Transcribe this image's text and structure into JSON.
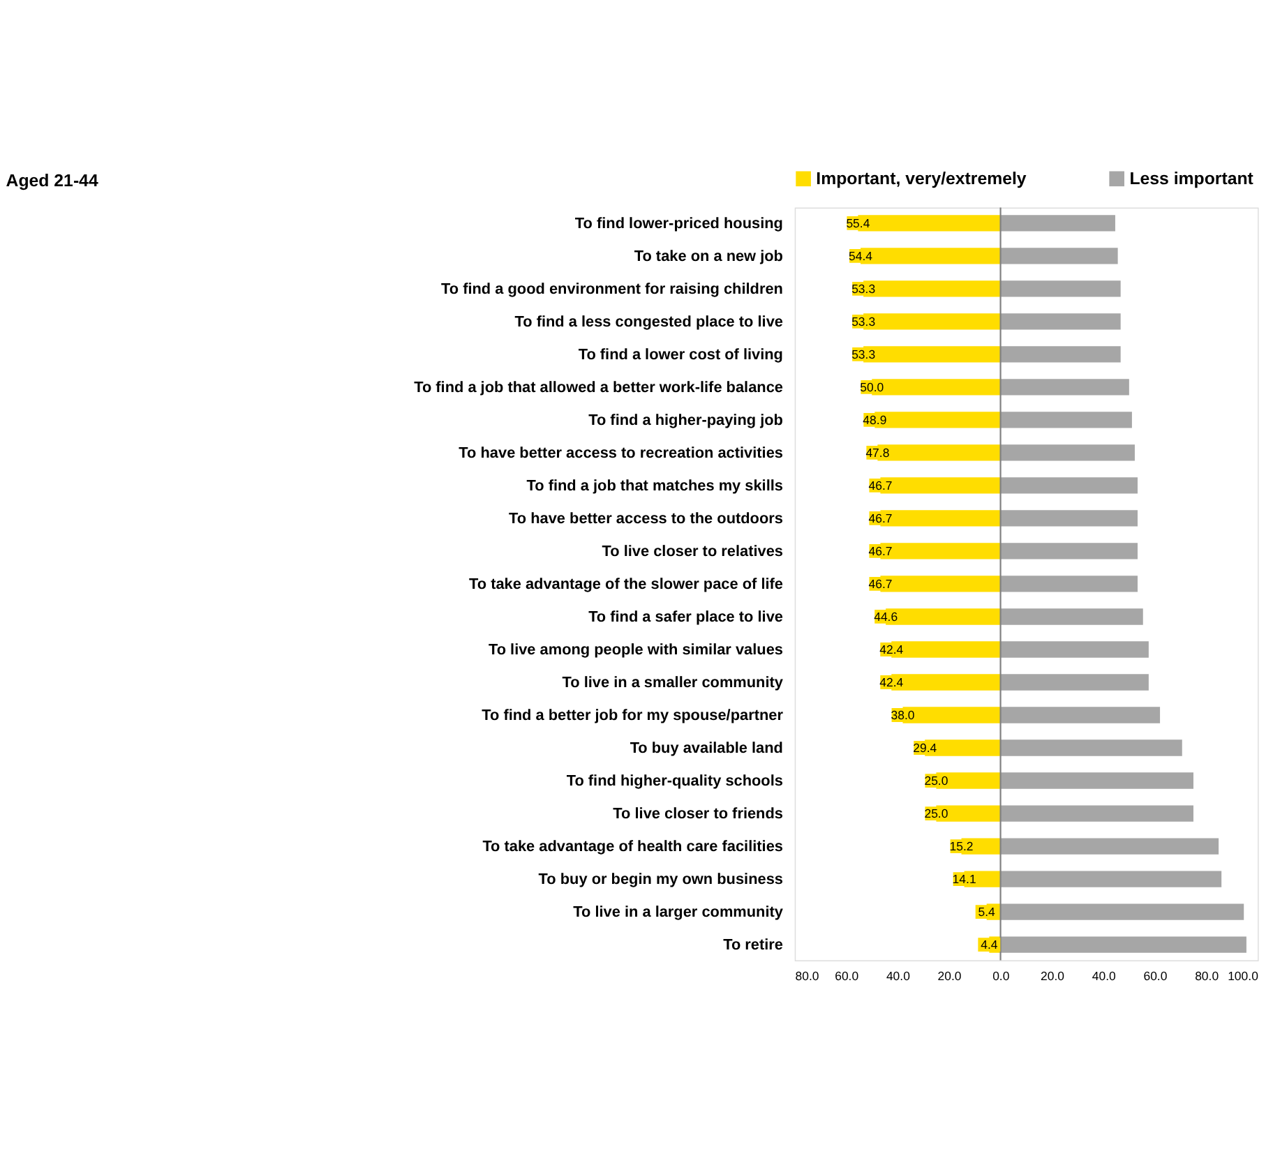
{
  "chart_data": {
    "type": "bar",
    "orientation": "horizontal",
    "title": "Aged 21-44",
    "categories": [
      "To find lower-priced housing",
      "To take  on a new job",
      "To find a good environment for raising children",
      "To find a less congested place to live",
      "To find a lower cost of living",
      "To find a job that allowed a better work-life balance",
      "To find a higher-paying job",
      "To have better access to recreation activities",
      "To find a job that matches my skills",
      "To have better access to the outdoors",
      "To live closer to relatives",
      "To take advantage of the slower pace of life",
      "To find a safer place to live",
      "To live among people with similar values",
      "To live in a smaller community",
      "To find a better job for my spouse/partner",
      "To buy available land",
      "To find higher-quality schools",
      "To live closer to friends",
      "To take advantage of health care facilities",
      "To buy or begin my own business",
      "To live in a larger community",
      "To retire"
    ],
    "series": [
      {
        "name": "Important, very/extremely",
        "color": "#ffdd00",
        "base": [
          -55.4,
          -54.4,
          -53.3,
          -53.3,
          -53.3,
          -50.0,
          -48.9,
          -47.8,
          -46.7,
          -46.7,
          -46.7,
          -46.7,
          -44.6,
          -42.4,
          -42.4,
          -38.0,
          -29.4,
          -25.0,
          -25.0,
          -15.2,
          -14.1,
          -5.4,
          -4.4
        ],
        "values": [
          55.4,
          54.4,
          53.3,
          53.3,
          53.3,
          50.0,
          48.9,
          47.8,
          46.7,
          46.7,
          46.7,
          46.7,
          44.6,
          42.4,
          42.4,
          38.0,
          29.4,
          25.0,
          25.0,
          15.2,
          14.1,
          5.4,
          4.4
        ],
        "value_labels": [
          "55.4",
          "54.4",
          "53.3",
          "53.3",
          "53.3",
          "50.0",
          "48.9",
          "47.8",
          "46.7",
          "46.7",
          "46.7",
          "46.7",
          "44.6",
          "42.4",
          "42.4",
          "38.0",
          "29.4",
          "25.0",
          "25.0",
          "15.2",
          "14.1",
          "5.4",
          "4.4"
        ]
      },
      {
        "name": "Less important",
        "color": "#a6a6a6",
        "values": [
          44.6,
          45.6,
          46.7,
          46.7,
          46.7,
          50.0,
          51.1,
          52.2,
          53.3,
          53.3,
          53.3,
          53.3,
          55.4,
          57.6,
          57.6,
          62.0,
          70.6,
          75.0,
          75.0,
          84.8,
          85.9,
          94.6,
          95.6
        ]
      }
    ],
    "xlim": [
      -80,
      100
    ],
    "xticks": [
      {
        "value": -80,
        "label": "80.0"
      },
      {
        "value": -60,
        "label": "60.0"
      },
      {
        "value": -40,
        "label": "40.0"
      },
      {
        "value": -20,
        "label": "20.0"
      },
      {
        "value": 0,
        "label": "0.0"
      },
      {
        "value": 20,
        "label": "20.0"
      },
      {
        "value": 40,
        "label": "40.0"
      },
      {
        "value": 60,
        "label": "60.0"
      },
      {
        "value": 80,
        "label": "80.0"
      },
      {
        "value": 100,
        "label": "100.0"
      }
    ],
    "ref_lines": [
      {
        "axis": "x",
        "value": 0,
        "color": "#808080"
      }
    ],
    "legend": "top",
    "grid": false
  }
}
